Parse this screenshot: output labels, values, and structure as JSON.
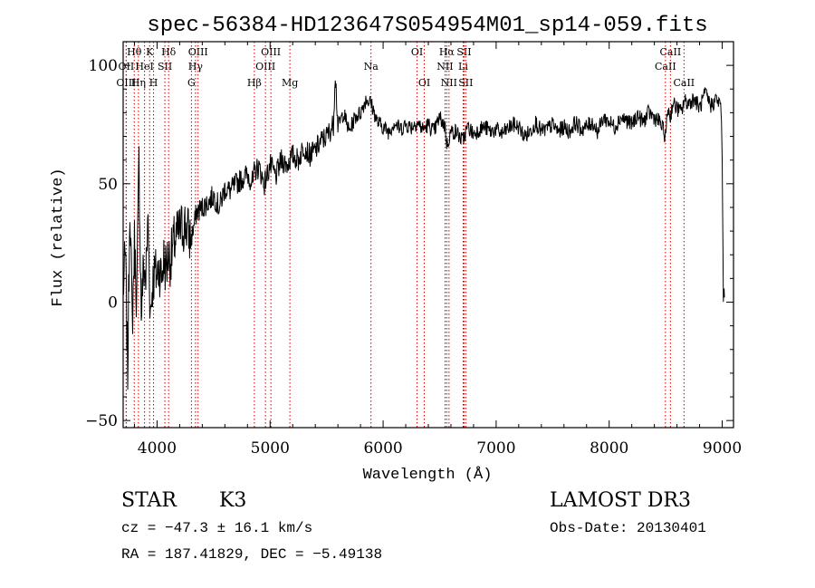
{
  "chart_data": {
    "type": "line",
    "title": "spec-56384-HD123647S054954M01_sp14-059.fits",
    "xlabel": "Wavelength (Å)",
    "ylabel": "Flux (relative)",
    "xlim": [
      3700,
      9100
    ],
    "ylim": [
      -53,
      110
    ],
    "xticks": [
      4000,
      5000,
      6000,
      7000,
      8000,
      9000
    ],
    "yticks": [
      -50,
      0,
      50,
      100
    ],
    "xtick_labels": [
      "4000",
      "5000",
      "6000",
      "7000",
      "8000",
      "9000"
    ],
    "ytick_labels": [
      "−50",
      "0",
      "50",
      "100"
    ],
    "series": [
      {
        "name": "spectrum",
        "x": [
          3700,
          3720,
          3740,
          3760,
          3780,
          3800,
          3820,
          3840,
          3860,
          3880,
          3900,
          3920,
          3940,
          3960,
          3980,
          4000,
          4020,
          4040,
          4060,
          4080,
          4100,
          4120,
          4150,
          4180,
          4200,
          4250,
          4300,
          4350,
          4400,
          4450,
          4500,
          4550,
          4600,
          4650,
          4700,
          4750,
          4800,
          4850,
          4860,
          4900,
          4950,
          5000,
          5050,
          5100,
          5150,
          5200,
          5250,
          5300,
          5350,
          5400,
          5450,
          5500,
          5560,
          5577,
          5600,
          5650,
          5700,
          5750,
          5800,
          5850,
          5893,
          5950,
          6000,
          6050,
          6100,
          6150,
          6200,
          6250,
          6300,
          6350,
          6400,
          6450,
          6500,
          6550,
          6563,
          6600,
          6650,
          6700,
          6750,
          6800,
          6850,
          6900,
          6950,
          7000,
          7050,
          7100,
          7150,
          7200,
          7250,
          7300,
          7350,
          7400,
          7450,
          7500,
          7550,
          7600,
          7650,
          7700,
          7750,
          7800,
          7850,
          7900,
          7950,
          8000,
          8050,
          8100,
          8150,
          8200,
          8250,
          8300,
          8350,
          8400,
          8450,
          8498,
          8520,
          8542,
          8560,
          8600,
          8640,
          8662,
          8700,
          8750,
          8800,
          8850,
          8900,
          8950,
          8970,
          8990,
          9000,
          9010,
          9020
        ],
        "values": [
          5,
          20,
          -30,
          45,
          -10,
          25,
          0,
          60,
          -5,
          15,
          10,
          35,
          -5,
          8,
          12,
          12,
          15,
          10,
          18,
          14,
          20,
          18,
          25,
          28,
          30,
          33,
          26,
          38,
          40,
          42,
          45,
          40,
          48,
          47,
          50,
          52,
          54,
          50,
          55,
          57,
          50,
          58,
          53,
          60,
          58,
          62,
          60,
          66,
          62,
          64,
          68,
          70,
          75,
          98,
          74,
          80,
          72,
          78,
          80,
          86,
          84,
          76,
          74,
          72,
          76,
          73,
          75,
          74,
          76,
          73,
          75,
          72,
          78,
          74,
          66,
          72,
          72,
          68,
          74,
          71,
          73,
          74,
          72,
          73,
          71,
          73,
          75,
          74,
          70,
          72,
          76,
          72,
          73,
          75,
          72,
          74,
          72,
          76,
          73,
          74,
          76,
          72,
          78,
          76,
          74,
          78,
          77,
          75,
          79,
          76,
          80,
          78,
          76,
          70,
          82,
          78,
          84,
          82,
          80,
          85,
          84,
          86,
          82,
          88,
          83,
          86,
          84,
          82,
          60,
          3,
          2
        ]
      }
    ],
    "lines": [
      {
        "label": "Hθ",
        "wl": 3798,
        "row": 1
      },
      {
        "label": "OII",
        "wl": 3727,
        "row": 2
      },
      {
        "label": "OIII",
        "wl": 3727,
        "row": 3
      },
      {
        "label": "K",
        "wl": 3934,
        "row": 1
      },
      {
        "label": "HeI",
        "wl": 3889,
        "row": 2
      },
      {
        "label": "Hη",
        "wl": 3835,
        "row": 3
      },
      {
        "label": "Hδ",
        "wl": 4102,
        "row": 1
      },
      {
        "label": "SII",
        "wl": 4069,
        "row": 2
      },
      {
        "label": "H",
        "wl": 3969,
        "row": 3
      },
      {
        "label": "OIII",
        "wl": 4363,
        "row": 1
      },
      {
        "label": "Hγ",
        "wl": 4340,
        "row": 2
      },
      {
        "label": "G",
        "wl": 4304,
        "row": 3
      },
      {
        "label": "Hβ",
        "wl": 4861,
        "row": 3
      },
      {
        "label": "OIII",
        "wl": 5007,
        "row": 1
      },
      {
        "label": "OIII",
        "wl": 4959,
        "row": 2
      },
      {
        "label": "Mg",
        "wl": 5175,
        "row": 3
      },
      {
        "label": "Na",
        "wl": 5893,
        "row": 2
      },
      {
        "label": "OI",
        "wl": 6300,
        "row": 1
      },
      {
        "label": "OI",
        "wl": 6364,
        "row": 3
      },
      {
        "label": "Hα",
        "wl": 6563,
        "row": 1
      },
      {
        "label": "SII",
        "wl": 6716,
        "row": 1
      },
      {
        "label": "NII",
        "wl": 6548,
        "row": 2
      },
      {
        "label": "Li",
        "wl": 6708,
        "row": 2
      },
      {
        "label": "NII",
        "wl": 6583,
        "row": 3
      },
      {
        "label": "SII",
        "wl": 6731,
        "row": 3
      },
      {
        "label": "CaII",
        "wl": 8542,
        "row": 1
      },
      {
        "label": "CaII",
        "wl": 8498,
        "row": 2
      },
      {
        "label": "CaII",
        "wl": 8662,
        "row": 3
      }
    ]
  },
  "info": {
    "object_type": "STAR",
    "subclass": "K3",
    "survey": "LAMOST DR3",
    "redshift_line": "cz = −47.3 ± 16.1 km/s",
    "obs_date": "Obs-Date: 20130401",
    "coords": "RA = 187.41829, DEC =  −5.49138"
  }
}
